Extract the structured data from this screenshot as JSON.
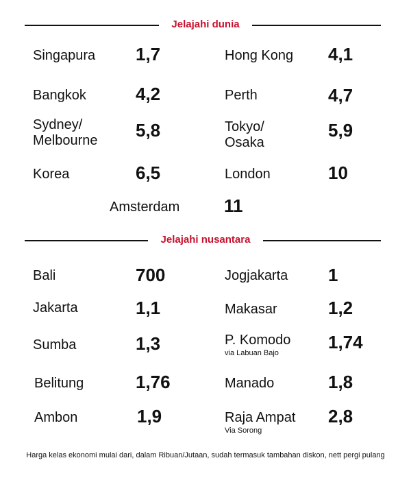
{
  "sections": {
    "world": {
      "title": "Jelajahi dunia",
      "items": [
        {
          "place": "Singapura",
          "value": "1,7"
        },
        {
          "place": "Hong Kong",
          "value": "4,1"
        },
        {
          "place": "Bangkok",
          "value": "4,2"
        },
        {
          "place": "Perth",
          "value": "4,7"
        },
        {
          "place_line1": "Sydney/",
          "place_line2": "Melbourne",
          "value": "5,8"
        },
        {
          "place_line1": "Tokyo/",
          "place_line2": "Osaka",
          "value": "5,9"
        },
        {
          "place": "Korea",
          "value": "6,5"
        },
        {
          "place": "London",
          "value": "10"
        },
        {
          "place": "Amsterdam",
          "value": "11"
        }
      ]
    },
    "nusantara": {
      "title": "Jelajahi nusantara",
      "items": [
        {
          "place": "Bali",
          "value": "700"
        },
        {
          "place": "Jogjakarta",
          "value": "1"
        },
        {
          "place": "Jakarta",
          "value": "1,1"
        },
        {
          "place": "Makasar",
          "value": "1,2"
        },
        {
          "place": "Sumba",
          "value": "1,3"
        },
        {
          "place": "P. Komodo",
          "note": "via Labuan Bajo",
          "value": "1,74"
        },
        {
          "place": "Belitung",
          "value": "1,76"
        },
        {
          "place": "Manado",
          "value": "1,8"
        },
        {
          "place": "Ambon",
          "value": "1,9"
        },
        {
          "place": "Raja Ampat",
          "note": "Via Sorong",
          "value": "2,8"
        }
      ]
    }
  },
  "footnote": "Harga kelas ekonomi mulai dari, dalam Ribuan/Jutaan, sudah termasuk tambahan diskon, nett pergi pulang",
  "colors": {
    "accent": "#c8102e",
    "text": "#111111",
    "background": "#ffffff"
  }
}
